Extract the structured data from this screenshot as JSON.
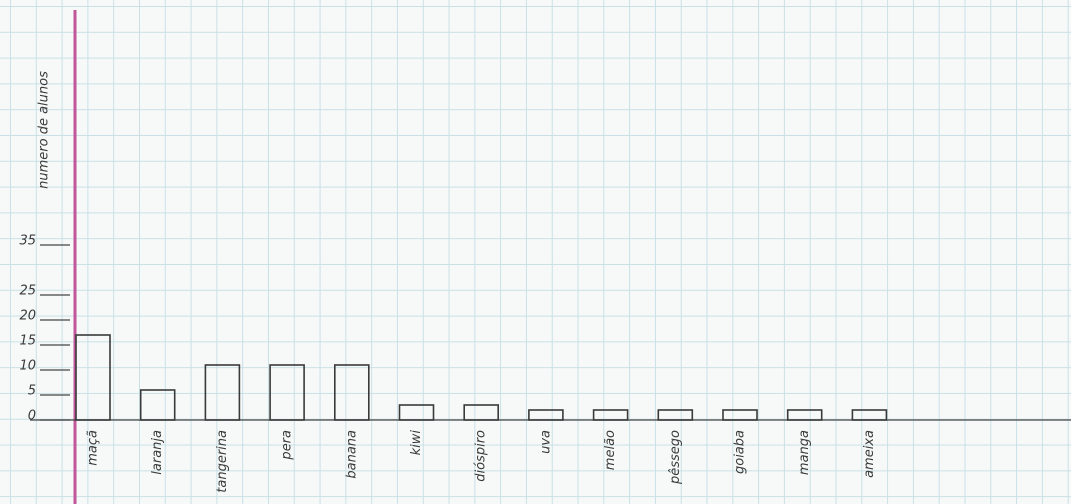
{
  "chart_data": {
    "type": "bar",
    "y_label": "numero de alunos",
    "categories": [
      "maçã",
      "laranja",
      "tangerina",
      "pera",
      "banana",
      "kiwi",
      "dióspiro",
      "uva",
      "melão",
      "pêssego",
      "goiaba",
      "manga",
      "ameixa"
    ],
    "values": [
      17,
      6,
      11,
      11,
      11,
      3,
      3,
      2,
      2,
      2,
      2,
      2,
      2
    ],
    "color": "#3a3a3a",
    "ylim": [
      0,
      35
    ],
    "yticks": [
      0,
      5,
      10,
      15,
      20,
      25,
      35
    ],
    "grid": true
  }
}
